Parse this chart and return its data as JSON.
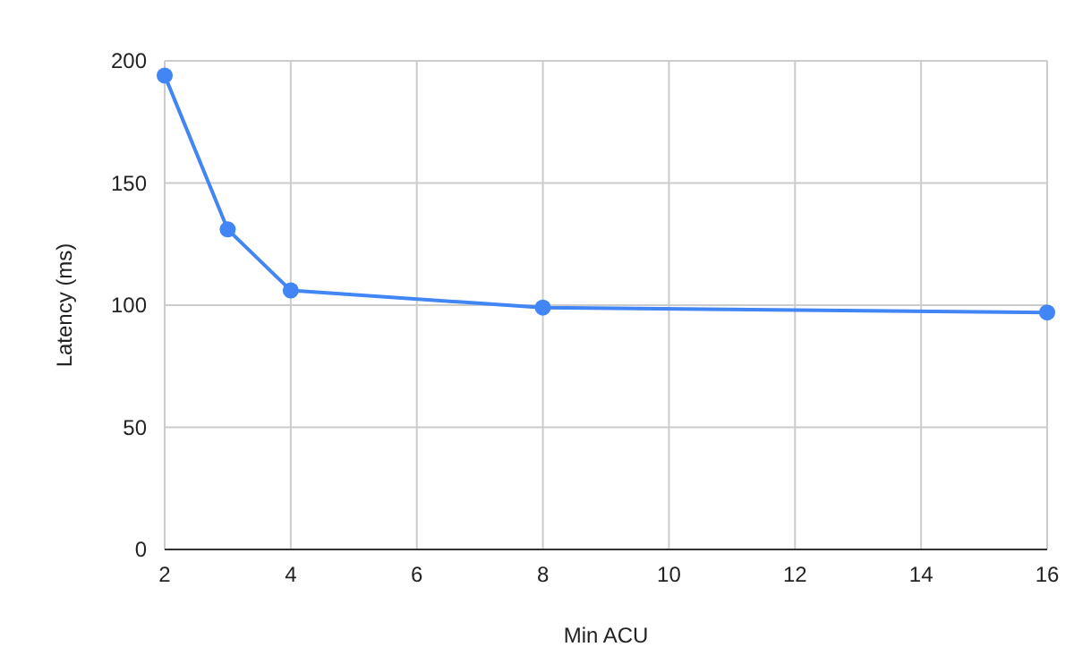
{
  "chart_data": {
    "type": "line",
    "xlabel": "Min ACU",
    "ylabel": "Latency (ms)",
    "x": [
      2,
      3,
      4,
      8,
      16
    ],
    "series": [
      {
        "color": "#4285f4",
        "values": [
          194,
          131,
          106,
          99,
          97
        ]
      }
    ],
    "xlim": [
      2,
      16
    ],
    "xticks": [
      2,
      4,
      6,
      8,
      10,
      12,
      14,
      16
    ],
    "ylim": [
      0,
      200
    ],
    "yticks": [
      0,
      50,
      100,
      150,
      200
    ],
    "grid": true,
    "marker": "circle",
    "line_style": "solid"
  }
}
